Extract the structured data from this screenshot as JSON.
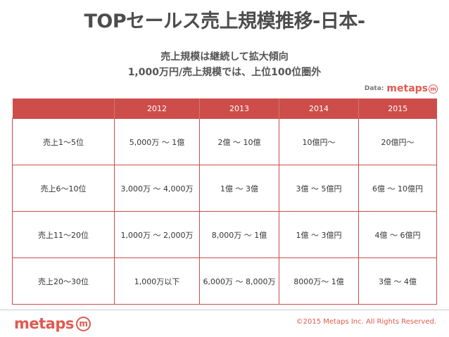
{
  "title": "TOPセールス売上規模推移-日本-",
  "subtitle": {
    "line1": "売上規模は継続して拡大傾向",
    "line2": "1,000万円/売上規模では、上位100位圏外"
  },
  "source": {
    "label": "Data:",
    "brand": "metaps",
    "mark": "m"
  },
  "table": {
    "headers": [
      "",
      "2012",
      "2013",
      "2014",
      "2015"
    ],
    "rows": [
      [
        "売上1〜5位",
        "5,000万 〜 1億",
        "2億 〜 10億",
        "10億円〜",
        "20億円〜"
      ],
      [
        "売上6〜10位",
        "3,000万 〜 4,000万",
        "1億 〜 3億",
        "3億 〜 5億円",
        "6億 〜 10億円"
      ],
      [
        "売上11〜20位",
        "1,000万 〜 2,000万",
        "8,000万 〜 1億",
        "1億 〜 3億円",
        "4億 〜 6億円"
      ],
      [
        "売上20〜30位",
        "1,000万以下",
        "6,000万 〜 8,000万",
        "8000万〜 1億",
        "3億 〜 4億"
      ]
    ]
  },
  "footer": {
    "brand": "metaps",
    "mark": "m",
    "copyright": "©2015 Metaps Inc. All Rights Reserved."
  },
  "colors": {
    "accent": "#cd4d4a",
    "brand": "#e05a4f",
    "title": "#4d4d4d"
  }
}
